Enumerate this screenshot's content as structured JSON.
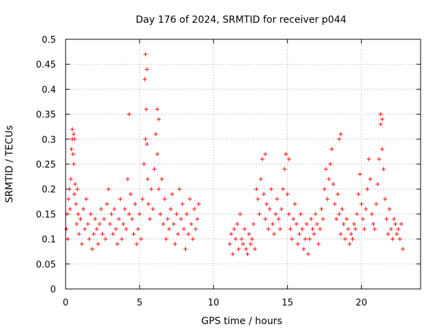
{
  "chart_data": {
    "type": "scatter",
    "title": "Day 176 of 2024, SRMTID for receiver p044",
    "xlabel": "GPS time / hours",
    "ylabel": "SRMTID / TECUs",
    "xlim": [
      0,
      24
    ],
    "ylim": [
      0,
      0.5
    ],
    "xticks": [
      0,
      5,
      10,
      15,
      20
    ],
    "xtick_labels": [
      "0",
      "5",
      "10",
      "15",
      "20"
    ],
    "yticks": [
      0,
      0.05,
      0.1,
      0.15,
      0.2,
      0.25,
      0.3,
      0.35,
      0.4,
      0.45,
      0.5
    ],
    "ytick_labels": [
      "0",
      "0.05",
      "0.1",
      "0.15",
      "0.2",
      "0.25",
      "0.3",
      "0.35",
      "0.4",
      "0.45",
      "0.5"
    ],
    "grid": true,
    "marker": "+",
    "color": "#ff0000",
    "series": [
      {
        "name": "SRMTID",
        "x": [
          0.05,
          0.1,
          0.15,
          0.2,
          0.25,
          0.3,
          0.35,
          0.4,
          0.45,
          0.5,
          0.55,
          0.6,
          0.65,
          0.7,
          0.75,
          0.8,
          0.85,
          0.9,
          1.0,
          1.1,
          1.2,
          1.3,
          1.4,
          1.5,
          1.6,
          1.7,
          1.8,
          1.9,
          2.0,
          2.1,
          2.2,
          2.3,
          2.4,
          2.5,
          2.6,
          2.7,
          2.8,
          2.9,
          3.0,
          3.1,
          3.2,
          3.3,
          3.4,
          3.5,
          3.6,
          3.7,
          3.8,
          3.9,
          4.0,
          4.1,
          4.2,
          4.3,
          4.4,
          4.5,
          4.6,
          4.7,
          4.8,
          4.9,
          5.0,
          5.1,
          5.2,
          5.3,
          5.4,
          5.45,
          5.5,
          5.55,
          5.6,
          5.7,
          5.8,
          5.9,
          6.0,
          6.1,
          6.2,
          6.3,
          6.4,
          6.5,
          6.6,
          6.7,
          6.8,
          6.9,
          7.0,
          7.1,
          7.2,
          7.3,
          7.4,
          7.5,
          7.6,
          7.7,
          7.8,
          7.9,
          8.0,
          8.1,
          8.2,
          8.3,
          8.4,
          8.5,
          8.6,
          8.7,
          8.8,
          8.9,
          9.0,
          11.1,
          11.2,
          11.3,
          11.4,
          11.5,
          11.6,
          11.7,
          11.8,
          11.9,
          12.0,
          12.1,
          12.2,
          12.3,
          12.4,
          12.5,
          12.6,
          12.7,
          12.8,
          12.9,
          13.0,
          13.1,
          13.2,
          13.3,
          13.4,
          13.5,
          13.6,
          13.7,
          13.8,
          13.9,
          14.0,
          14.1,
          14.2,
          14.3,
          14.4,
          14.5,
          14.6,
          14.7,
          14.8,
          14.9,
          15.0,
          15.1,
          15.2,
          15.3,
          15.4,
          15.5,
          15.6,
          15.7,
          15.8,
          15.9,
          16.0,
          16.1,
          16.2,
          16.3,
          16.4,
          16.5,
          16.6,
          16.7,
          16.8,
          16.9,
          17.0,
          17.1,
          17.2,
          17.3,
          17.4,
          17.5,
          17.6,
          17.7,
          17.8,
          17.9,
          18.0,
          18.1,
          18.2,
          18.3,
          18.4,
          18.5,
          18.6,
          18.7,
          18.8,
          18.9,
          19.0,
          19.1,
          19.2,
          19.3,
          19.4,
          19.5,
          19.6,
          19.7,
          19.8,
          19.9,
          20.0,
          20.1,
          20.2,
          20.3,
          20.4,
          20.5,
          20.6,
          20.7,
          20.8,
          20.9,
          21.0,
          21.1,
          21.2,
          21.3,
          21.4,
          21.5,
          21.6,
          21.7,
          21.8,
          21.9,
          22.0,
          22.1,
          22.2,
          22.3,
          22.4,
          22.5,
          22.6,
          22.7,
          22.8,
          0.45,
          0.55,
          0.6,
          4.3,
          5.35,
          5.4,
          5.5,
          6.2,
          6.3,
          13.5,
          14.9,
          15.1,
          18.5,
          18.6,
          21.3,
          21.4
        ],
        "y": [
          0.12,
          0.15,
          0.1,
          0.18,
          0.2,
          0.16,
          0.22,
          0.28,
          0.3,
          0.27,
          0.25,
          0.19,
          0.21,
          0.17,
          0.13,
          0.2,
          0.15,
          0.11,
          0.14,
          0.09,
          0.16,
          0.12,
          0.18,
          0.13,
          0.1,
          0.15,
          0.08,
          0.11,
          0.14,
          0.12,
          0.09,
          0.13,
          0.16,
          0.11,
          0.14,
          0.1,
          0.17,
          0.2,
          0.13,
          0.15,
          0.11,
          0.16,
          0.12,
          0.09,
          0.14,
          0.18,
          0.1,
          0.13,
          0.16,
          0.12,
          0.22,
          0.15,
          0.19,
          0.14,
          0.11,
          0.17,
          0.09,
          0.12,
          0.15,
          0.1,
          0.18,
          0.25,
          0.3,
          0.36,
          0.29,
          0.22,
          0.17,
          0.14,
          0.2,
          0.16,
          0.24,
          0.31,
          0.27,
          0.2,
          0.15,
          0.22,
          0.13,
          0.18,
          0.1,
          0.14,
          0.12,
          0.16,
          0.19,
          0.13,
          0.09,
          0.15,
          0.11,
          0.2,
          0.14,
          0.17,
          0.12,
          0.08,
          0.15,
          0.11,
          0.18,
          0.13,
          0.1,
          0.16,
          0.12,
          0.14,
          0.17,
          0.09,
          0.11,
          0.07,
          0.12,
          0.1,
          0.13,
          0.08,
          0.15,
          0.1,
          0.09,
          0.12,
          0.08,
          0.07,
          0.11,
          0.09,
          0.1,
          0.13,
          0.08,
          0.2,
          0.18,
          0.15,
          0.22,
          0.26,
          0.19,
          0.14,
          0.17,
          0.12,
          0.16,
          0.2,
          0.13,
          0.11,
          0.15,
          0.18,
          0.14,
          0.12,
          0.16,
          0.2,
          0.24,
          0.27,
          0.19,
          0.15,
          0.12,
          0.1,
          0.14,
          0.17,
          0.13,
          0.09,
          0.11,
          0.15,
          0.12,
          0.08,
          0.1,
          0.13,
          0.07,
          0.1,
          0.14,
          0.12,
          0.11,
          0.15,
          0.13,
          0.09,
          0.12,
          0.16,
          0.14,
          0.2,
          0.24,
          0.18,
          0.22,
          0.25,
          0.28,
          0.21,
          0.17,
          0.14,
          0.19,
          0.15,
          0.11,
          0.16,
          0.13,
          0.1,
          0.14,
          0.12,
          0.09,
          0.11,
          0.1,
          0.13,
          0.12,
          0.15,
          0.19,
          0.23,
          0.17,
          0.14,
          0.12,
          0.16,
          0.2,
          0.26,
          0.22,
          0.15,
          0.13,
          0.12,
          0.17,
          0.21,
          0.26,
          0.33,
          0.28,
          0.24,
          0.18,
          0.14,
          0.11,
          0.16,
          0.12,
          0.1,
          0.14,
          0.13,
          0.11,
          0.12,
          0.1,
          0.13,
          0.08,
          0.32,
          0.31,
          0.3,
          0.35,
          0.42,
          0.47,
          0.44,
          0.36,
          0.34,
          0.27,
          0.27,
          0.26,
          0.3,
          0.31,
          0.35,
          0.34
        ]
      }
    ]
  }
}
